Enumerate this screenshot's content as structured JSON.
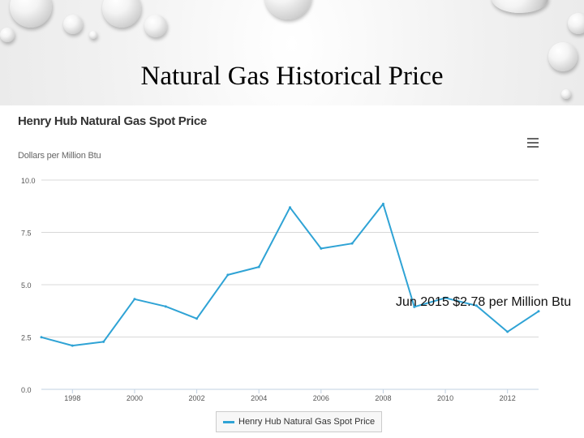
{
  "slide": {
    "title": "Natural Gas Historical Price",
    "annotation": "Jun 2015 $2.78 per Million Btu"
  },
  "menu_icon": "hamburger-menu-icon",
  "colors": {
    "series": "#2fa3d5",
    "grid": "#d8d8d8",
    "axis": "#c0d0e0"
  },
  "chart_data": {
    "type": "line",
    "title": "Henry Hub Natural Gas Spot Price",
    "ylabel": "Dollars per Million Btu",
    "xlabel": "",
    "xlim": [
      1997,
      2013
    ],
    "ylim": [
      0,
      10
    ],
    "yticks": [
      "0.0",
      "2.5",
      "5.0",
      "7.5",
      "10.0"
    ],
    "xticks": [
      "1998",
      "2000",
      "2002",
      "2004",
      "2006",
      "2008",
      "2010",
      "2012"
    ],
    "grid": true,
    "legend": "bottom-center",
    "series": [
      {
        "name": "Henry Hub Natural Gas Spot Price",
        "x": [
          1997,
          1998,
          1999,
          2000,
          2001,
          2002,
          2003,
          2004,
          2005,
          2006,
          2007,
          2008,
          2009,
          2010,
          2011,
          2012,
          2013
        ],
        "values": [
          2.49,
          2.09,
          2.27,
          4.31,
          3.96,
          3.38,
          5.47,
          5.85,
          8.69,
          6.73,
          6.97,
          8.86,
          3.94,
          4.37,
          4.0,
          2.75,
          3.73
        ]
      }
    ]
  }
}
